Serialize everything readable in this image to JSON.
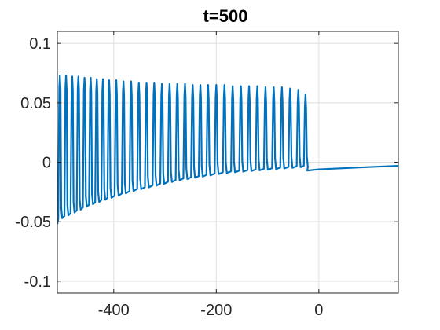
{
  "chart_data": {
    "type": "line",
    "title": "t=500",
    "xlabel": "",
    "ylabel": "",
    "xlim": [
      -510,
      155
    ],
    "ylim": [
      -0.11,
      0.11
    ],
    "xticks": [
      -400,
      -200,
      0
    ],
    "xtick_labels": [
      "-400",
      "-200",
      "0"
    ],
    "yticks": [
      0.1,
      0.05,
      0,
      -0.05,
      -0.1
    ],
    "ytick_labels": [
      "0.1",
      "0.05",
      "0",
      "-0.05",
      "-0.1"
    ],
    "grid": true,
    "line_color": "#0072BD",
    "series": [
      {
        "spike_x": [
          -505,
          -493,
          -481,
          -469,
          -457,
          -445,
          -433,
          -421,
          -409,
          -395,
          -381,
          -366,
          -351,
          -336,
          -321,
          -306,
          -291,
          -276,
          -261,
          -246,
          -231,
          -216,
          -200,
          -184,
          -168,
          -152,
          -136,
          -120,
          -104,
          -88,
          -72,
          -56,
          -40,
          -26
        ],
        "spike_peak": [
          0.073,
          0.073,
          0.072,
          0.072,
          0.071,
          0.071,
          0.07,
          0.07,
          0.069,
          0.069,
          0.068,
          0.068,
          0.067,
          0.067,
          0.067,
          0.066,
          0.066,
          0.066,
          0.066,
          0.065,
          0.065,
          0.065,
          0.065,
          0.065,
          0.064,
          0.064,
          0.064,
          0.064,
          0.063,
          0.063,
          0.063,
          0.062,
          0.061,
          0.057
        ],
        "baseline_x": [
          -510,
          -480,
          -450,
          -420,
          -390,
          -360,
          -330,
          -300,
          -270,
          -240,
          -210,
          -180,
          -150,
          -120,
          -90,
          -60,
          -30,
          -22
        ],
        "baseline_y": [
          -0.052,
          -0.046,
          -0.04,
          -0.035,
          -0.031,
          -0.027,
          -0.024,
          -0.021,
          -0.018,
          -0.016,
          -0.014,
          -0.012,
          -0.011,
          -0.01,
          -0.009,
          -0.008,
          -0.007,
          -0.007
        ],
        "tail_x": [
          -22,
          0,
          50,
          100,
          155
        ],
        "tail_y": [
          -0.007,
          -0.006,
          -0.005,
          -0.004,
          -0.003
        ]
      }
    ]
  }
}
